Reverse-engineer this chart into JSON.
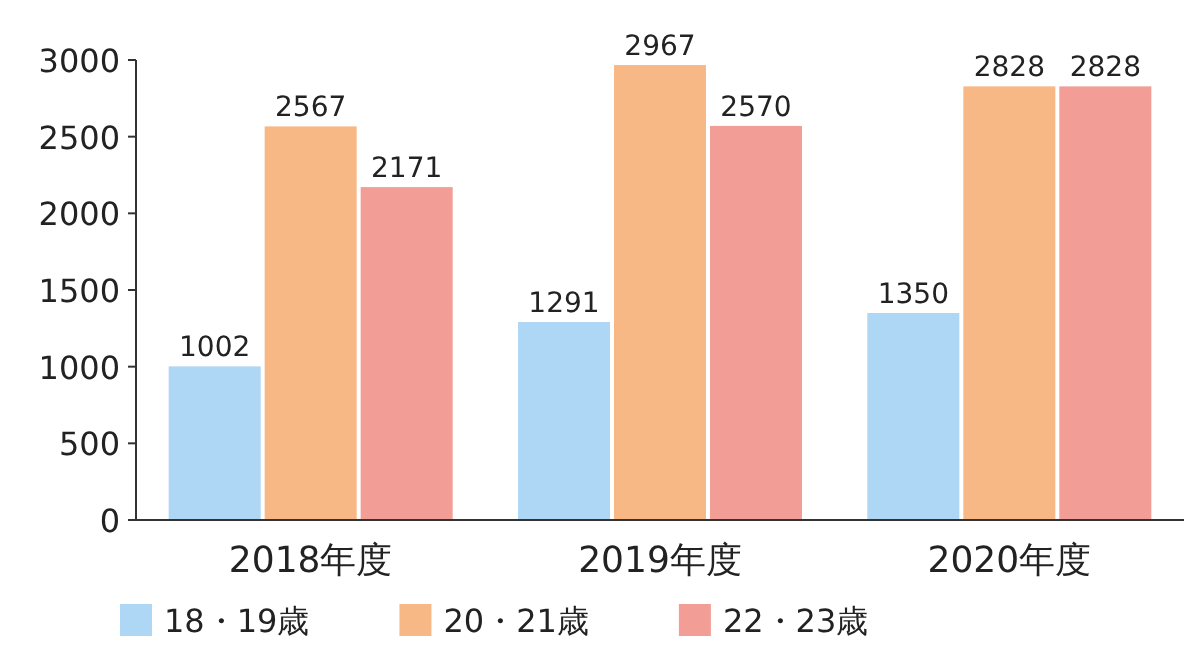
{
  "chart_data": {
    "type": "bar",
    "categories": [
      "2018年度",
      "2019年度",
      "2020年度"
    ],
    "series": [
      {
        "name": "18・19歳",
        "color": "#aed6f5",
        "values": [
          1002,
          1291,
          1350
        ]
      },
      {
        "name": "20・21歳",
        "color": "#f7b886",
        "values": [
          2567,
          2967,
          2828
        ]
      },
      {
        "name": "22・23歳",
        "color": "#f29d96",
        "values": [
          2171,
          2570,
          2828
        ]
      }
    ],
    "ylim": [
      0,
      3000
    ],
    "yticks": [
      0,
      500,
      1000,
      1500,
      2000,
      2500,
      3000
    ],
    "data_labels": true,
    "legend": "bottom",
    "grid": false
  }
}
